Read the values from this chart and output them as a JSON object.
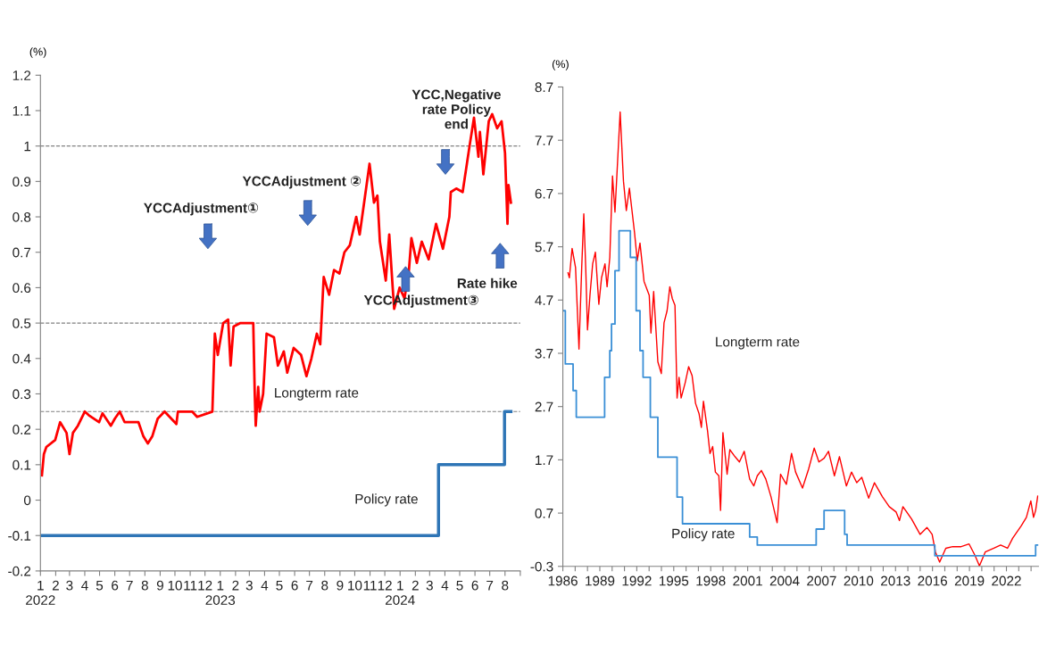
{
  "chart_data": [
    {
      "type": "line",
      "ylabel": "(%)",
      "xlim": [
        "2022-01-01",
        "2024-09-01"
      ],
      "ylim": [
        -0.2,
        1.2
      ],
      "xticks": [
        {
          "value": "2022-01",
          "label": "1\n2022"
        },
        {
          "value": "2022-02",
          "label": "2"
        },
        {
          "value": "2022-03",
          "label": "3"
        },
        {
          "value": "2022-04",
          "label": "4"
        },
        {
          "value": "2022-05",
          "label": "5"
        },
        {
          "value": "2022-06",
          "label": "6"
        },
        {
          "value": "2022-07",
          "label": "7"
        },
        {
          "value": "2022-08",
          "label": "8"
        },
        {
          "value": "2022-09",
          "label": "9"
        },
        {
          "value": "2022-10",
          "label": "10"
        },
        {
          "value": "2022-11",
          "label": "11"
        },
        {
          "value": "2022-12",
          "label": "12"
        },
        {
          "value": "2023-01",
          "label": "1\n2023"
        },
        {
          "value": "2023-02",
          "label": "2"
        },
        {
          "value": "2023-03",
          "label": "3"
        },
        {
          "value": "2023-04",
          "label": "4"
        },
        {
          "value": "2023-05",
          "label": "5"
        },
        {
          "value": "2023-06",
          "label": "6"
        },
        {
          "value": "2023-07",
          "label": "7"
        },
        {
          "value": "2023-08",
          "label": "8"
        },
        {
          "value": "2023-09",
          "label": "9"
        },
        {
          "value": "2023-10",
          "label": "10"
        },
        {
          "value": "2023-11",
          "label": "11"
        },
        {
          "value": "2023-12",
          "label": "12"
        },
        {
          "value": "2024-01",
          "label": "1\n2024"
        },
        {
          "value": "2024-02",
          "label": "2"
        },
        {
          "value": "2024-03",
          "label": "3"
        },
        {
          "value": "2024-04",
          "label": "4"
        },
        {
          "value": "2024-05",
          "label": "5"
        },
        {
          "value": "2024-06",
          "label": "6"
        },
        {
          "value": "2024-07",
          "label": "7"
        },
        {
          "value": "2024-08",
          "label": "8"
        },
        {
          "value": "2024-09",
          "label": null
        }
      ],
      "yticks": [
        -0.2,
        -0.1,
        0,
        0.1,
        0.2,
        0.3,
        0.4,
        0.5,
        0.6,
        0.7,
        0.8,
        0.9,
        1,
        1.1,
        1.2
      ],
      "series": [
        {
          "name": "Longterm rate",
          "color": "#ff0000",
          "x": [
            "2022-01-04",
            "2022-01-08",
            "2022-01-13",
            "2022-01-31",
            "2022-02-10",
            "2022-02-23",
            "2022-03-01",
            "2022-03-08",
            "2022-03-18",
            "2022-04-01",
            "2022-04-09",
            "2022-04-30",
            "2022-05-07",
            "2022-05-24",
            "2022-06-01",
            "2022-06-11",
            "2022-06-21",
            "2022-07-05",
            "2022-07-19",
            "2022-07-29",
            "2022-08-07",
            "2022-08-16",
            "2022-08-27",
            "2022-09-10",
            "2022-10-04",
            "2022-10-07",
            "2022-11-05",
            "2022-11-15",
            "2022-12-16",
            "2022-12-21",
            "2022-12-27",
            "2023-01-07",
            "2023-01-17",
            "2023-01-22",
            "2023-01-28",
            "2023-02-11",
            "2023-03-09",
            "2023-03-12",
            "2023-03-14",
            "2023-03-19",
            "2023-03-22",
            "2023-03-29",
            "2023-04-05",
            "2023-04-20",
            "2023-04-28",
            "2023-05-10",
            "2023-05-17",
            "2023-05-30",
            "2023-06-14",
            "2023-06-25",
            "2023-07-05",
            "2023-07-16",
            "2023-07-23",
            "2023-07-30",
            "2023-08-10",
            "2023-08-20",
            "2023-08-31",
            "2023-09-10",
            "2023-09-21",
            "2023-10-04",
            "2023-10-11",
            "2023-10-22",
            "2023-10-31",
            "2023-11-09",
            "2023-11-16",
            "2023-11-21",
            "2023-12-03",
            "2023-12-10",
            "2023-12-17",
            "2023-12-20",
            "2023-12-31",
            "2024-01-10",
            "2024-01-19",
            "2024-01-24",
            "2024-02-04",
            "2024-02-14",
            "2024-02-28",
            "2024-03-14",
            "2024-03-28",
            "2024-04-10",
            "2024-04-13",
            "2024-04-24",
            "2024-05-07",
            "2024-05-21",
            "2024-05-30",
            "2024-06-08",
            "2024-06-11",
            "2024-06-18",
            "2024-06-29",
            "2024-07-06",
            "2024-07-16",
            "2024-07-25",
            "2024-08-01",
            "2024-08-06",
            "2024-08-08",
            "2024-08-13"
          ],
          "values": [
            0.07,
            0.13,
            0.15,
            0.17,
            0.22,
            0.19,
            0.13,
            0.19,
            0.21,
            0.25,
            0.24,
            0.22,
            0.245,
            0.21,
            0.23,
            0.25,
            0.22,
            0.22,
            0.22,
            0.18,
            0.16,
            0.18,
            0.23,
            0.25,
            0.215,
            0.25,
            0.25,
            0.235,
            0.25,
            0.47,
            0.41,
            0.5,
            0.51,
            0.38,
            0.49,
            0.5,
            0.5,
            0.3,
            0.21,
            0.32,
            0.25,
            0.3,
            0.47,
            0.46,
            0.38,
            0.42,
            0.36,
            0.43,
            0.41,
            0.35,
            0.4,
            0.47,
            0.44,
            0.63,
            0.58,
            0.65,
            0.64,
            0.7,
            0.72,
            0.8,
            0.75,
            0.86,
            0.95,
            0.84,
            0.86,
            0.73,
            0.62,
            0.75,
            0.6,
            0.54,
            0.6,
            0.57,
            0.65,
            0.74,
            0.67,
            0.73,
            0.68,
            0.78,
            0.71,
            0.8,
            0.87,
            0.88,
            0.87,
            1.0,
            1.08,
            0.97,
            1.04,
            0.92,
            1.07,
            1.09,
            1.05,
            1.07,
            0.98,
            0.78,
            0.89,
            0.84
          ]
        },
        {
          "name": "Policy rate",
          "type": "step",
          "color": "#2e75b6",
          "x": [
            "2022-01-01",
            "2024-03-19",
            "2024-07-31",
            "2024-08-13"
          ],
          "values": [
            -0.1,
            0.1,
            0.25,
            0.25
          ]
        }
      ],
      "ref_lines": [
        {
          "axis": "y",
          "value": 1,
          "color": "#808080",
          "line_style": "dashed"
        },
        {
          "axis": "y",
          "value": 0.5,
          "color": "#808080",
          "line_style": "dashed"
        },
        {
          "axis": "y",
          "value": 0.25,
          "color": "#808080",
          "line_style": "dashed"
        }
      ],
      "annotations": [
        "YCCAdjustment①",
        "YCCAdjustment ②",
        "YCC,Negative\nrate Policy\nend",
        "YCCAdjustment③",
        "Rate hike"
      ]
    },
    {
      "type": "line",
      "ylabel": "(%)",
      "xlim": [
        1986,
        2024.6
      ],
      "ylim": [
        -0.3,
        8.7
      ],
      "xticks": [
        1986,
        {
          "value": 1987,
          "label": null
        },
        {
          "value": 1988,
          "label": null
        },
        1989,
        {
          "value": 1990,
          "label": null
        },
        {
          "value": 1991,
          "label": null
        },
        1992,
        {
          "value": 1993,
          "label": null
        },
        {
          "value": 1994,
          "label": null
        },
        1995,
        {
          "value": 1996,
          "label": null
        },
        {
          "value": 1997,
          "label": null
        },
        1998,
        {
          "value": 1999,
          "label": null
        },
        {
          "value": 2000,
          "label": null
        },
        2001,
        {
          "value": 2002,
          "label": null
        },
        {
          "value": 2003,
          "label": null
        },
        2004,
        {
          "value": 2005,
          "label": null
        },
        {
          "value": 2006,
          "label": null
        },
        2007,
        {
          "value": 2008,
          "label": null
        },
        {
          "value": 2009,
          "label": null
        },
        2010,
        {
          "value": 2011,
          "label": null
        },
        {
          "value": 2012,
          "label": null
        },
        2013,
        {
          "value": 2014,
          "label": null
        },
        {
          "value": 2015,
          "label": null
        },
        2016,
        {
          "value": 2017,
          "label": null
        },
        {
          "value": 2018,
          "label": null
        },
        2019,
        {
          "value": 2020,
          "label": null
        },
        {
          "value": 2021,
          "label": null
        },
        2022,
        {
          "value": 2023,
          "label": null
        },
        {
          "value": 2024,
          "label": null
        }
      ],
      "yticks": [
        -0.3,
        0.7,
        1.7,
        2.7,
        3.7,
        4.7,
        5.7,
        6.7,
        7.7,
        8.7
      ],
      "series": [
        {
          "name": "Longterm rate",
          "color": "#ff0000",
          "x": [
            1986.42,
            1986.53,
            1986.75,
            1987.03,
            1987.31,
            1987.53,
            1987.7,
            1987.86,
            1988.0,
            1988.2,
            1988.42,
            1988.64,
            1988.92,
            1989.14,
            1989.42,
            1989.59,
            1989.81,
            1990.03,
            1990.23,
            1990.65,
            1990.92,
            1991.15,
            1991.4,
            1991.82,
            1992.04,
            1992.26,
            1992.59,
            1993.01,
            1993.15,
            1993.37,
            1993.71,
            1993.99,
            1994.21,
            1994.46,
            1994.68,
            1994.88,
            1995.1,
            1995.27,
            1995.43,
            1995.6,
            1995.93,
            1996.21,
            1996.49,
            1996.77,
            1997.05,
            1997.24,
            1997.41,
            1997.74,
            1997.94,
            1998.16,
            1998.38,
            1998.66,
            1998.8,
            1998.99,
            1999.33,
            1999.55,
            1999.97,
            2000.33,
            2000.72,
            2001.16,
            2001.5,
            2001.78,
            2002.11,
            2002.47,
            2002.89,
            2003.39,
            2003.67,
            2004.14,
            2004.56,
            2004.89,
            2005.45,
            2005.95,
            2006.4,
            2006.78,
            2007.2,
            2007.56,
            2008.04,
            2008.45,
            2009.01,
            2009.43,
            2009.85,
            2010.26,
            2010.82,
            2011.29,
            2011.93,
            2012.49,
            2013.05,
            2013.32,
            2013.6,
            2014.3,
            2014.99,
            2015.55,
            2015.97,
            2016.24,
            2016.58,
            2017.08,
            2017.64,
            2018.33,
            2018.97,
            2019.44,
            2019.81,
            2020.28,
            2020.98,
            2021.53,
            2022.09,
            2022.51,
            2023.2,
            2023.62,
            2023.98,
            2024.2,
            2024.37,
            2024.54
          ],
          "values": [
            5.21,
            5.12,
            5.67,
            5.31,
            3.78,
            5.31,
            6.32,
            5.28,
            4.14,
            4.79,
            5.38,
            5.6,
            4.62,
            5.12,
            5.38,
            4.95,
            5.5,
            7.03,
            6.35,
            8.23,
            6.93,
            6.38,
            6.8,
            5.96,
            5.44,
            5.77,
            5.05,
            4.79,
            4.08,
            4.86,
            3.54,
            3.32,
            4.27,
            4.5,
            4.95,
            4.73,
            4.6,
            2.86,
            3.25,
            2.86,
            3.15,
            3.45,
            3.28,
            2.76,
            2.57,
            2.31,
            2.8,
            2.25,
            1.82,
            1.95,
            1.47,
            1.4,
            0.75,
            2.21,
            1.43,
            1.89,
            1.76,
            1.66,
            1.86,
            1.34,
            1.21,
            1.4,
            1.5,
            1.34,
            1.01,
            0.52,
            1.43,
            1.24,
            1.82,
            1.47,
            1.17,
            1.53,
            1.92,
            1.66,
            1.73,
            1.86,
            1.4,
            1.76,
            1.21,
            1.47,
            1.27,
            1.37,
            0.98,
            1.27,
            1.01,
            0.82,
            0.72,
            0.56,
            0.82,
            0.59,
            0.3,
            0.43,
            0.3,
            -0.03,
            -0.22,
            0.04,
            0.07,
            0.07,
            0.12,
            -0.09,
            -0.29,
            -0.03,
            0.04,
            0.1,
            0.04,
            0.23,
            0.46,
            0.62,
            0.93,
            0.62,
            0.75,
            1.02
          ]
        },
        {
          "name": "Policy rate",
          "type": "step",
          "color": "#3a8fd6",
          "x": [
            1986.0,
            1986.2,
            1986.83,
            1987.09,
            1989.39,
            1989.81,
            1989.95,
            1990.23,
            1990.56,
            1991.48,
            1991.95,
            1992.26,
            1992.51,
            1993.1,
            1993.71,
            1995.27,
            1995.71,
            2001.16,
            2001.78,
            2006.56,
            2007.2,
            2008.87,
            2009.07,
            2016.19,
            2024.37,
            2024.54
          ],
          "values": [
            4.5,
            3.5,
            3.0,
            2.5,
            3.25,
            3.75,
            4.25,
            5.25,
            6.0,
            5.5,
            4.5,
            3.75,
            3.25,
            2.5,
            1.75,
            1.0,
            0.5,
            0.25,
            0.1,
            0.4,
            0.75,
            0.3,
            0.1,
            -0.1,
            0.1,
            0.1
          ]
        }
      ]
    }
  ]
}
